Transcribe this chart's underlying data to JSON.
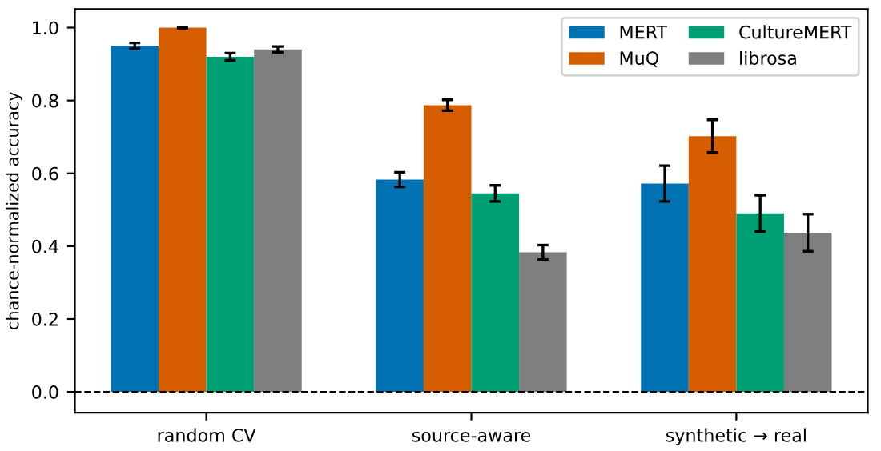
{
  "chart_data": {
    "type": "bar",
    "ylabel": "chance-normalized accuracy",
    "categories": [
      "random CV",
      "source-aware",
      "synthetic → real"
    ],
    "series": [
      {
        "name": "MERT",
        "color": "#0072b2",
        "values": [
          0.95,
          0.583,
          0.572
        ],
        "errors": [
          0.008,
          0.02,
          0.049
        ]
      },
      {
        "name": "MuQ",
        "color": "#d55e00",
        "values": [
          1.0,
          0.787,
          0.702
        ],
        "errors": [
          0.002,
          0.015,
          0.045
        ]
      },
      {
        "name": "CultureMERT",
        "color": "#009e73",
        "values": [
          0.92,
          0.545,
          0.49
        ],
        "errors": [
          0.01,
          0.022,
          0.05
        ]
      },
      {
        "name": "librosa",
        "color": "#7f7f7f",
        "values": [
          0.94,
          0.383,
          0.437
        ],
        "errors": [
          0.008,
          0.02,
          0.051
        ]
      }
    ],
    "ylim": [
      -0.057,
      1.051
    ],
    "yticks": [
      {
        "value": 0,
        "label": "0.0"
      },
      0.2,
      0.4,
      0.6,
      0.8,
      {
        "value": 1,
        "label": "1.0"
      }
    ],
    "ref_lines": [
      {
        "axis": "y",
        "value": 0,
        "color": "#000000",
        "line_style": "dashed"
      }
    ],
    "legend": "top right",
    "grid": false
  }
}
